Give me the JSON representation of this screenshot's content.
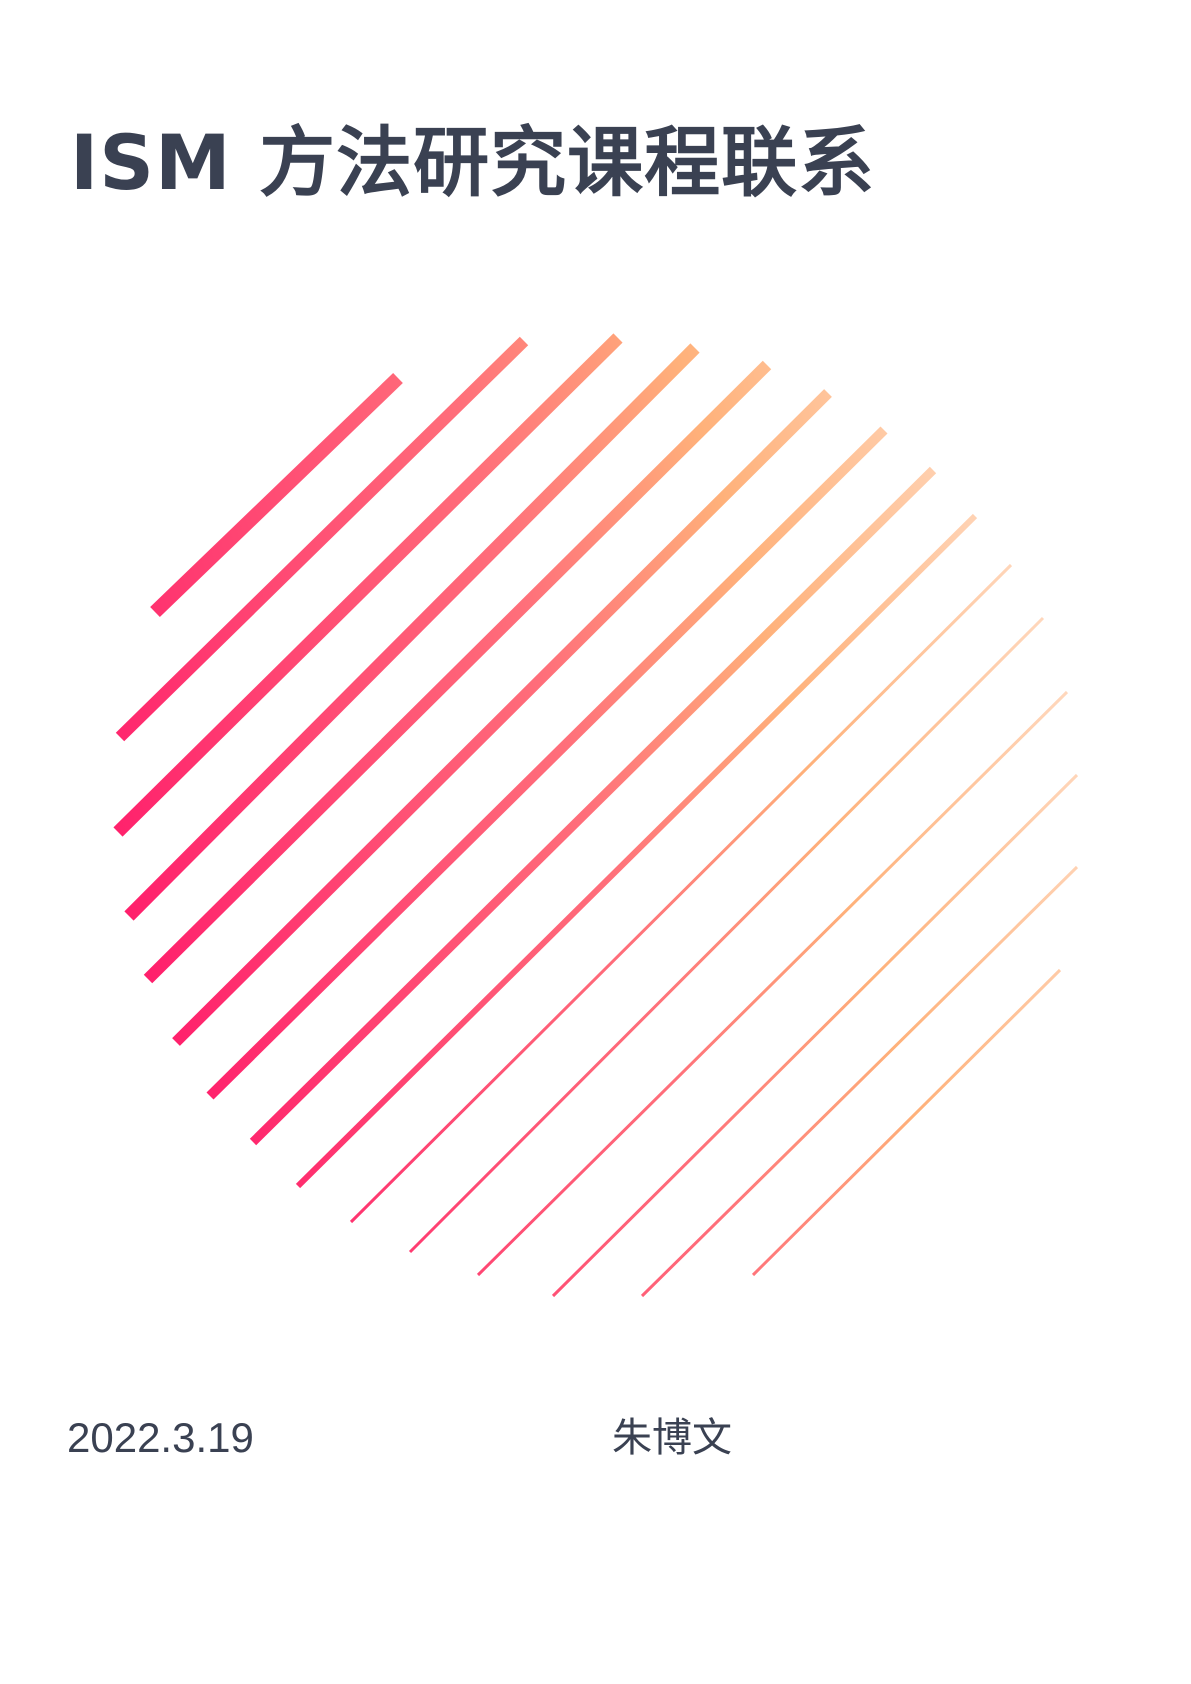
{
  "cover": {
    "title": "ISM 方法研究课程联系",
    "date": "2022.3.19",
    "author": "朱博文",
    "stripe_colors": {
      "start": "#ff1a6b",
      "mid": "#ff6f7a",
      "end": "#ffb17a"
    }
  }
}
